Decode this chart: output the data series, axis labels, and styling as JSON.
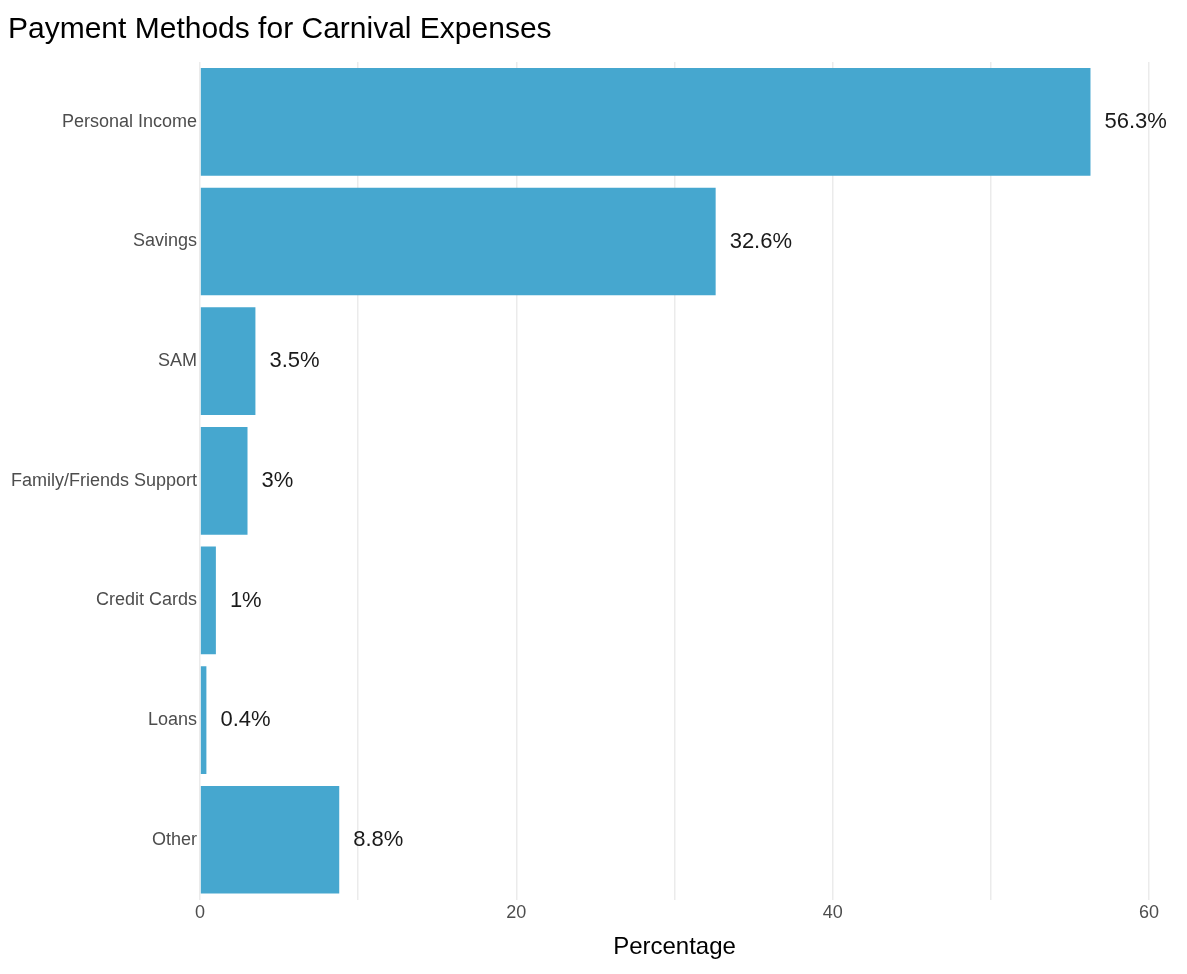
{
  "chart_data": {
    "type": "bar",
    "orientation": "horizontal",
    "title": "Payment Methods for Carnival Expenses",
    "xlabel": "Percentage",
    "categories": [
      "Personal Income",
      "Savings",
      "SAM",
      "Family/Friends Support",
      "Credit Cards",
      "Loans",
      "Other"
    ],
    "values": [
      56.3,
      32.6,
      3.5,
      3,
      1,
      0.4,
      8.8
    ],
    "value_labels": [
      "56.3%",
      "32.6%",
      "3.5%",
      "3%",
      "1%",
      "0.4%",
      "8.8%"
    ],
    "color": "#46a7cf",
    "xlim": [
      0,
      60
    ],
    "xticks": [
      0,
      {
        "value": 10,
        "label": null
      },
      20,
      {
        "value": 30,
        "label": null
      },
      40,
      {
        "value": 50,
        "label": null
      },
      60
    ],
    "grid": "x",
    "legend": false
  }
}
